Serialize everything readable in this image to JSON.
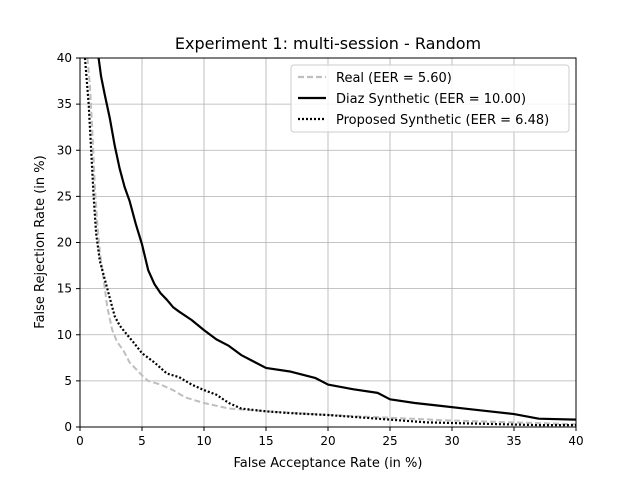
{
  "chart_data": {
    "type": "line",
    "title": "Experiment 1: multi-session - Random",
    "xlabel": "False Acceptance Rate (in %)",
    "ylabel": "False Rejection Rate (in %)",
    "xlim": [
      0,
      40
    ],
    "ylim": [
      0,
      40
    ],
    "xticks": [
      0,
      5,
      10,
      15,
      20,
      25,
      30,
      35,
      40
    ],
    "yticks": [
      0,
      5,
      10,
      15,
      20,
      25,
      30,
      35,
      40
    ],
    "grid": true,
    "legend_position": "top-right",
    "series": [
      {
        "name": "Real (EER = 5.60)",
        "color": "#bfbfbf",
        "style": "dashed",
        "points": [
          [
            0.6,
            40
          ],
          [
            0.8,
            37
          ],
          [
            1.0,
            32
          ],
          [
            1.2,
            26
          ],
          [
            1.4,
            22
          ],
          [
            1.6,
            19
          ],
          [
            1.9,
            16
          ],
          [
            2.2,
            13
          ],
          [
            2.6,
            10.5
          ],
          [
            3.0,
            9.2
          ],
          [
            3.5,
            8.3
          ],
          [
            4.0,
            7.0
          ],
          [
            4.5,
            6.3
          ],
          [
            5.0,
            5.6
          ],
          [
            5.5,
            5.0
          ],
          [
            6.5,
            4.6
          ],
          [
            7.5,
            4.0
          ],
          [
            8.5,
            3.2
          ],
          [
            10.0,
            2.6
          ],
          [
            12.0,
            2.0
          ],
          [
            15.0,
            1.7
          ],
          [
            20.0,
            1.3
          ],
          [
            25.0,
            1.0
          ],
          [
            30.0,
            0.7
          ],
          [
            35.0,
            0.5
          ],
          [
            40.0,
            0.3
          ]
        ]
      },
      {
        "name": "Diaz Synthetic (EER = 10.00)",
        "color": "#000000",
        "style": "solid",
        "points": [
          [
            1.5,
            40
          ],
          [
            1.7,
            38
          ],
          [
            2.0,
            36
          ],
          [
            2.4,
            33.5
          ],
          [
            2.8,
            30.5
          ],
          [
            3.2,
            28
          ],
          [
            3.6,
            26
          ],
          [
            4.0,
            24.5
          ],
          [
            4.5,
            22
          ],
          [
            5.0,
            19.8
          ],
          [
            5.5,
            17
          ],
          [
            6.0,
            15.5
          ],
          [
            6.5,
            14.5
          ],
          [
            7.0,
            13.8
          ],
          [
            7.5,
            13
          ],
          [
            8.0,
            12.5
          ],
          [
            9.0,
            11.6
          ],
          [
            10.0,
            10.5
          ],
          [
            11.0,
            9.5
          ],
          [
            12.0,
            8.8
          ],
          [
            13.0,
            7.8
          ],
          [
            14.0,
            7.1
          ],
          [
            15.0,
            6.4
          ],
          [
            17.0,
            6.0
          ],
          [
            19.0,
            5.3
          ],
          [
            20.0,
            4.6
          ],
          [
            22.0,
            4.1
          ],
          [
            24.0,
            3.7
          ],
          [
            25.0,
            3.0
          ],
          [
            27.0,
            2.6
          ],
          [
            29.0,
            2.3
          ],
          [
            31.0,
            2.0
          ],
          [
            33.0,
            1.7
          ],
          [
            35.0,
            1.4
          ],
          [
            37.0,
            0.9
          ],
          [
            40.0,
            0.8
          ]
        ]
      },
      {
        "name": "Proposed Synthetic (EER = 6.48)",
        "color": "#000000",
        "style": "dotted",
        "points": [
          [
            0.4,
            40
          ],
          [
            0.7,
            35
          ],
          [
            0.9,
            30
          ],
          [
            1.1,
            25
          ],
          [
            1.3,
            21
          ],
          [
            1.6,
            18
          ],
          [
            2.0,
            16
          ],
          [
            2.4,
            14
          ],
          [
            2.8,
            12
          ],
          [
            3.2,
            11
          ],
          [
            3.8,
            10
          ],
          [
            4.3,
            9.2
          ],
          [
            5.0,
            8.0
          ],
          [
            6.0,
            7.0
          ],
          [
            7.0,
            5.8
          ],
          [
            8.0,
            5.4
          ],
          [
            9.0,
            4.6
          ],
          [
            10.0,
            4.0
          ],
          [
            11.0,
            3.5
          ],
          [
            12.0,
            2.6
          ],
          [
            13.0,
            2.0
          ],
          [
            15.0,
            1.7
          ],
          [
            17.0,
            1.5
          ],
          [
            20.0,
            1.3
          ],
          [
            23.0,
            1.0
          ],
          [
            25.0,
            0.8
          ],
          [
            28.0,
            0.5
          ],
          [
            31.0,
            0.4
          ],
          [
            34.0,
            0.3
          ],
          [
            37.0,
            0.2
          ],
          [
            40.0,
            0.2
          ]
        ]
      }
    ]
  }
}
